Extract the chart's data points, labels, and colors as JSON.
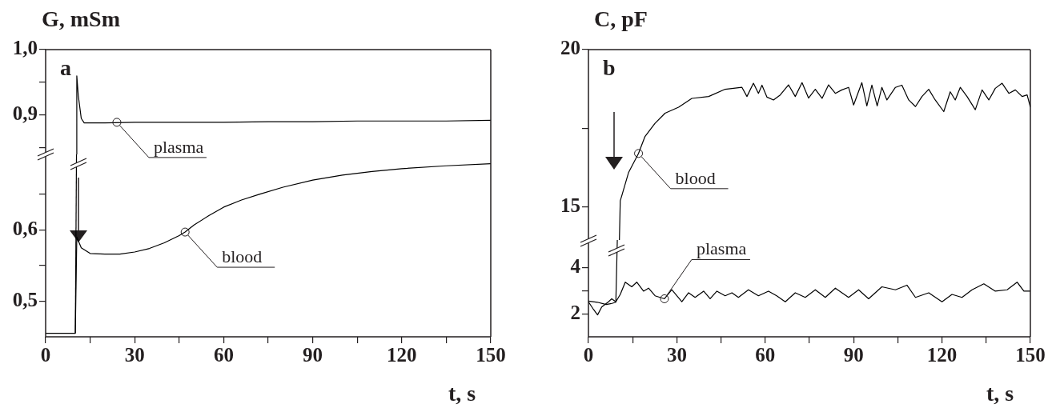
{
  "chart_data": [
    {
      "type": "line",
      "ylabel": "G, mSm",
      "annotations": [
        "a",
        {
          "text": "plasma",
          "x": 24,
          "y": 0.889
        }
      ],
      "tick_labels": "y",
      "xlim": [
        0,
        150
      ],
      "ylim": [
        0.84,
        1.0
      ],
      "yticks": [
        {
          "value": 0.85,
          "label": null
        },
        {
          "value": 0.9,
          "label": "0,9"
        },
        {
          "value": 0.95,
          "label": null
        },
        {
          "value": 1.0,
          "label": "1,0"
        }
      ],
      "series": [
        {
          "color": "#000000",
          "x": [
            10.4,
            10.5,
            11,
            12,
            13,
            20,
            30,
            45,
            60,
            75,
            90,
            105,
            120,
            135,
            150
          ],
          "values": [
            0.84,
            0.96,
            0.93,
            0.895,
            0.888,
            0.888,
            0.889,
            0.889,
            0.889,
            0.89,
            0.89,
            0.891,
            0.891,
            0.891,
            0.892
          ]
        }
      ]
    },
    {
      "type": "line",
      "xlabel": "t, s",
      "annotations": [
        {
          "text": "blood",
          "x": 47,
          "y": 0.597
        }
      ],
      "xlim": [
        0,
        150
      ],
      "ylim": [
        0.45,
        0.706
      ],
      "xticks": [
        0,
        {
          "value": 15,
          "label": null
        },
        30,
        {
          "value": 45,
          "label": null
        },
        60,
        {
          "value": 75,
          "label": null
        },
        90,
        {
          "value": 105,
          "label": null
        },
        120,
        {
          "value": 135,
          "label": null
        },
        150
      ],
      "yticks": [
        {
          "value": 0.5,
          "label": "0,5"
        },
        {
          "value": 0.55,
          "label": null
        },
        {
          "value": 0.6,
          "label": "0,6"
        },
        {
          "value": 0.65,
          "label": null
        }
      ],
      "series": [
        {
          "color": "#000000",
          "x": [
            10,
            10.4
          ],
          "values": [
            0.455,
            0.706
          ]
        },
        {
          "color": "#000000",
          "x": [
            0,
            5,
            10,
            10.5,
            11,
            12,
            15,
            20,
            25,
            30,
            35,
            40,
            45,
            47,
            50,
            55,
            60,
            66,
            72,
            80,
            90,
            100,
            110,
            120,
            135,
            150
          ],
          "values": [
            0.455,
            0.455,
            0.455,
            0.59,
            0.585,
            0.575,
            0.567,
            0.566,
            0.566,
            0.569,
            0.574,
            0.582,
            0.592,
            0.597,
            0.607,
            0.62,
            0.632,
            0.642,
            0.65,
            0.66,
            0.67,
            0.677,
            0.682,
            0.686,
            0.69,
            0.693
          ]
        }
      ]
    },
    {
      "type": "line",
      "ylabel": "C, pF",
      "annotations": [
        "b",
        {
          "text": "blood",
          "x": 17,
          "y": 16.7
        }
      ],
      "tick_labels": "y",
      "xlim": [
        0,
        150
      ],
      "ylim": [
        13.95,
        20
      ],
      "yticks": [
        15,
        {
          "value": 17.5,
          "label": null
        },
        20
      ],
      "series": [
        {
          "color": "#000000",
          "x": [
            10.5,
            10.8,
            11.3,
            13.6,
            17.0,
            19.2,
            22.6,
            26.0,
            30.6,
            35.1,
            40.8,
            46.4,
            52.1,
            53.8,
            56.0,
            57.7,
            58.9,
            60.6,
            62.8,
            65.1,
            67.9,
            70.2,
            72.5,
            74.7,
            77.0,
            79.3,
            81.5,
            83.8,
            86.0,
            88.3,
            90.0,
            92.8,
            94.5,
            96.2,
            98.0,
            99.6,
            101.3,
            104.2,
            106.4,
            108.7,
            111.0,
            113.2,
            115.5,
            117.7,
            120.6,
            122.8,
            124.5,
            126.2,
            128.5,
            131.3,
            133.6,
            135.9,
            138.1,
            140.4,
            142.7,
            144.9,
            147.2,
            148.9,
            150.0
          ],
          "values": [
            13.95,
            15.2,
            15.35,
            16.09,
            16.7,
            17.24,
            17.66,
            17.98,
            18.17,
            18.45,
            18.51,
            18.74,
            18.8,
            18.51,
            18.93,
            18.61,
            18.87,
            18.49,
            18.4,
            18.56,
            18.88,
            18.51,
            18.95,
            18.46,
            18.74,
            18.45,
            18.88,
            18.61,
            18.72,
            18.8,
            18.24,
            18.95,
            18.21,
            18.87,
            18.21,
            18.8,
            18.4,
            18.8,
            18.87,
            18.4,
            18.19,
            18.51,
            18.74,
            18.4,
            18.03,
            18.66,
            18.4,
            18.8,
            18.51,
            18.09,
            18.72,
            18.4,
            18.77,
            18.93,
            18.61,
            18.72,
            18.51,
            18.56,
            18.17
          ]
        }
      ]
    },
    {
      "type": "line",
      "xlabel": "t, s",
      "annotations": [
        {
          "text": "plasma",
          "x": 25.8,
          "y": 2.65
        }
      ],
      "xlim": [
        0,
        150
      ],
      "ylim": [
        1,
        5.2
      ],
      "xticks": [
        0,
        {
          "value": 15,
          "label": null
        },
        30,
        {
          "value": 45,
          "label": null
        },
        60,
        {
          "value": 75,
          "label": null
        },
        90,
        {
          "value": 105,
          "label": null
        },
        120,
        {
          "value": 135,
          "label": null
        },
        150
      ],
      "yticks": [
        2,
        {
          "value": 3,
          "label": null
        },
        4
      ],
      "series": [
        {
          "color": "#000000",
          "x": [
            0,
            3,
            6,
            8,
            9.3,
            9.8
          ],
          "values": [
            2.55,
            2.5,
            2.4,
            2.45,
            2.5,
            5.2
          ]
        },
        {
          "color": "#000000",
          "x": [
            0,
            1.7,
            3.1,
            4.5,
            6.8,
            7.9,
            9.3,
            10.8,
            12.5,
            14.7,
            16.4,
            18.7,
            20.4,
            22.6,
            25.8,
            28.3,
            31.7,
            34.0,
            36.2,
            39.1,
            41.3,
            43.6,
            46.4,
            48.7,
            50.9,
            54.3,
            57.7,
            61.1,
            63.9,
            66.8,
            70.2,
            73.6,
            77.0,
            80.4,
            83.8,
            88.3,
            91.7,
            95.1,
            99.6,
            104.2,
            108.1,
            111.0,
            115.5,
            120.0,
            123.4,
            126.8,
            130.2,
            134.2,
            138.1,
            142.1,
            145.5,
            147.8,
            150.0
          ],
          "values": [
            2.52,
            2.19,
            1.95,
            2.29,
            2.52,
            2.65,
            2.52,
            2.84,
            3.37,
            3.17,
            3.37,
            2.98,
            3.11,
            2.78,
            2.65,
            3.04,
            2.52,
            2.91,
            2.71,
            2.98,
            2.65,
            2.98,
            2.78,
            2.91,
            2.71,
            3.04,
            2.78,
            2.98,
            2.78,
            2.52,
            2.91,
            2.71,
            3.04,
            2.71,
            3.11,
            2.71,
            3.04,
            2.65,
            3.17,
            3.04,
            3.24,
            2.71,
            2.91,
            2.52,
            2.84,
            2.71,
            3.04,
            3.3,
            2.98,
            3.04,
            3.37,
            2.98,
            2.98
          ]
        }
      ]
    }
  ]
}
